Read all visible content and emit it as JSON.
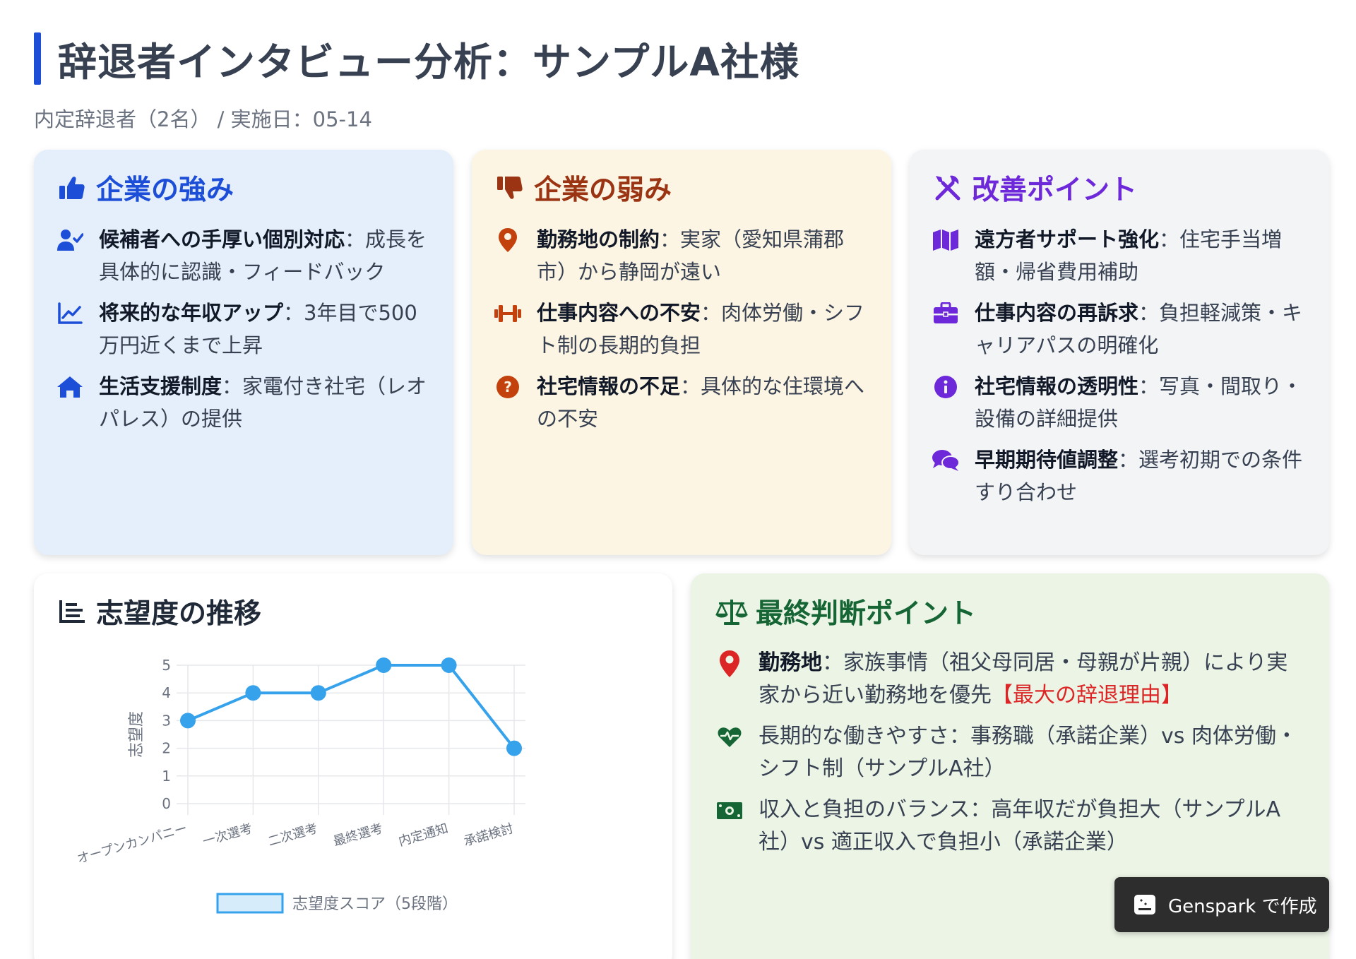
{
  "header": {
    "title": "辞退者インタビュー分析：サンプルA社様",
    "subtitle": "内定辞退者（2名） / 実施日：05-14"
  },
  "strengths": {
    "title": "企業の強み",
    "items": [
      {
        "icon": "user-check-icon",
        "bold": "候補者への手厚い個別対応",
        "text": "：成長を具体的に認識・フィードバック"
      },
      {
        "icon": "chart-line-icon",
        "bold": "将来的な年収アップ",
        "text": "：3年目で500万円近くまで上昇"
      },
      {
        "icon": "home-icon",
        "bold": "生活支援制度",
        "text": "：家電付き社宅（レオパレス）の提供"
      }
    ]
  },
  "weaknesses": {
    "title": "企業の弱み",
    "items": [
      {
        "icon": "map-pin-icon",
        "bold": "勤務地の制約",
        "text": "：実家（愛知県蒲郡市）から静岡が遠い"
      },
      {
        "icon": "dumbbell-icon",
        "bold": "仕事内容への不安",
        "text": "：肉体労働・シフト制の長期的負担"
      },
      {
        "icon": "question-circle-icon",
        "bold": "社宅情報の不足",
        "text": "：具体的な住環境への不安"
      }
    ]
  },
  "improvements": {
    "title": "改善ポイント",
    "items": [
      {
        "icon": "map-icon",
        "bold": "遠方者サポート強化",
        "text": "：住宅手当増額・帰省費用補助"
      },
      {
        "icon": "briefcase-icon",
        "bold": "仕事内容の再訴求",
        "text": "：負担軽減策・キャリアパスの明確化"
      },
      {
        "icon": "info-circle-icon",
        "bold": "社宅情報の透明性",
        "text": "：写真・間取り・設備の詳細提供"
      },
      {
        "icon": "comments-icon",
        "bold": "早期期待値調整",
        "text": "：選考初期での条件すり合わせ"
      }
    ]
  },
  "chart_card": {
    "title": "志望度の推移"
  },
  "chart_data": {
    "type": "line",
    "categories": [
      "オープンカンパニー",
      "一次選考",
      "二次選考",
      "最終選考",
      "内定通知",
      "承諾検討"
    ],
    "series": [
      {
        "name": "志望度スコア（5段階）",
        "values": [
          3,
          4,
          4,
          5,
          5,
          2
        ]
      }
    ],
    "ylabel": "志望度",
    "xlabel": "",
    "ylim": [
      0,
      5
    ],
    "yticks": [
      "0",
      "1",
      "2",
      "3",
      "4",
      "5"
    ],
    "grid": true,
    "legend": "bottom",
    "color": "#36a2eb"
  },
  "final": {
    "title": "最終判断ポイント",
    "items": [
      {
        "icon": "location-pin-icon",
        "bold": "勤務地",
        "text": "：家族事情（祖父母同居・母親が片親）により実家から近い勤務地を優先",
        "highlight": "【最大の辞退理由】"
      },
      {
        "icon": "heartbeat-icon",
        "bold": "",
        "text": "長期的な働きやすさ：事務職（承諾企業）vs 肉体労働・シフト制（サンプルA社）",
        "highlight": ""
      },
      {
        "icon": "money-bill-icon",
        "bold": "",
        "text": "収入と負担のバランス：高年収だが負担大（サンプルA社）vs 適正収入で負担小（承諾企業）",
        "highlight": ""
      }
    ]
  },
  "badge": {
    "label": "Genspark で作成"
  },
  "colors": {
    "accent": "#1d4ed8",
    "strength_bg": "#e4effb",
    "weak_bg": "#fdf5e3",
    "improve_bg": "#f3f4f6",
    "final_bg": "#ecf4e6",
    "highlight": "#dc2626"
  }
}
